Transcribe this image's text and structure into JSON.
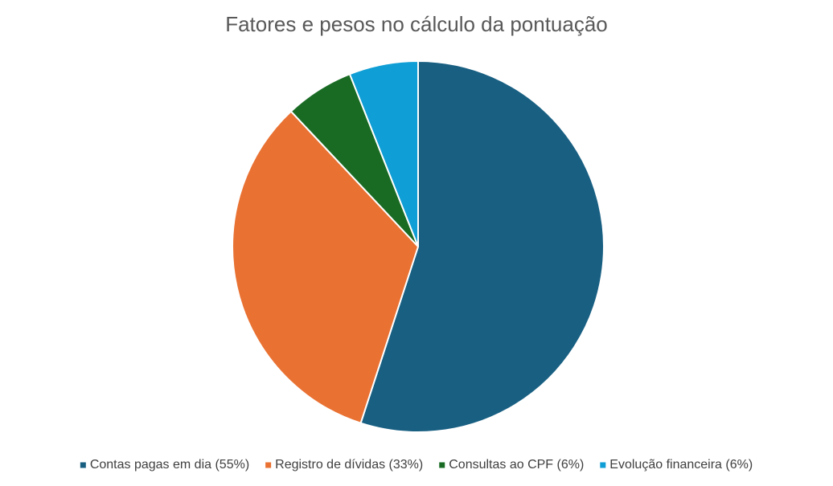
{
  "chart_data": {
    "type": "pie",
    "title": "Fatores e pesos no cálculo da pontuação",
    "categories": [
      "Contas pagas em dia (55%)",
      "Registro de dívidas (33%)",
      "Consultas ao CPF (6%)",
      "Evolução financeira (6%)"
    ],
    "values": [
      55,
      33,
      6,
      6
    ],
    "colors": [
      "#185f82",
      "#e97132",
      "#196b24",
      "#0f9ed5"
    ],
    "legend": "bottom"
  }
}
